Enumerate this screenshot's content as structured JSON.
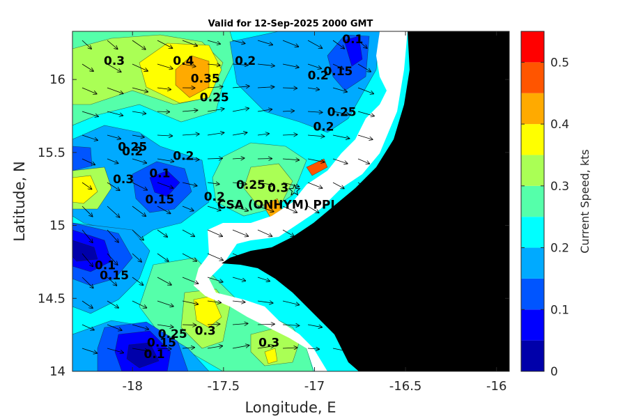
{
  "chart_data": {
    "type": "heatmap",
    "title": "Valid for 12-Sep-2025 2000 GMT",
    "xlabel": "Longitude, E",
    "ylabel": "Latitude, N",
    "xlim": [
      -18.33,
      -15.93
    ],
    "ylim": [
      14.0,
      16.33
    ],
    "x_ticks": [
      -18,
      -17.5,
      -17,
      -16.5,
      -16
    ],
    "x_tick_labels": [
      "-18",
      "-17.5",
      "-17",
      "-16.5",
      "-16"
    ],
    "y_ticks": [
      14,
      14.5,
      15,
      15.5,
      16
    ],
    "y_tick_labels": [
      "14",
      "14.5",
      "15",
      "15.5",
      "16"
    ],
    "colorbar": {
      "label": "Current Speed, kts",
      "range": [
        0,
        0.55
      ],
      "levels": [
        0,
        0.05,
        0.1,
        0.15,
        0.2,
        0.25,
        0.3,
        0.35,
        0.4,
        0.45,
        0.5,
        0.55
      ],
      "colors": [
        "#0000aa",
        "#0000ff",
        "#0055ff",
        "#00aaff",
        "#00ffff",
        "#55ffaa",
        "#aaff55",
        "#ffff00",
        "#ffaa00",
        "#ff5500",
        "#ff0000"
      ],
      "tick_values": [
        0,
        0.1,
        0.2,
        0.3,
        0.4,
        0.5
      ],
      "tick_labels": [
        "0",
        "0.1",
        "0.2",
        "0.3",
        "0.4",
        "0.5"
      ]
    },
    "contour_labels": [
      {
        "text": "0.3",
        "lon": -18.1,
        "lat": 16.1
      },
      {
        "text": "0.4",
        "lon": -17.72,
        "lat": 16.1
      },
      {
        "text": "0.35",
        "lon": -17.6,
        "lat": 15.98
      },
      {
        "text": "0.2",
        "lon": -17.38,
        "lat": 16.1
      },
      {
        "text": "0.25",
        "lon": -17.55,
        "lat": 15.85
      },
      {
        "text": "0.1",
        "lon": -16.79,
        "lat": 16.25
      },
      {
        "text": "0.15",
        "lon": -16.87,
        "lat": 16.03
      },
      {
        "text": "0.2",
        "lon": -16.98,
        "lat": 16.0
      },
      {
        "text": "0.25",
        "lon": -16.85,
        "lat": 15.75
      },
      {
        "text": "0.2",
        "lon": -16.95,
        "lat": 15.65
      },
      {
        "text": "0.2",
        "lon": -18.0,
        "lat": 15.48
      },
      {
        "text": "0.25",
        "lon": -18.0,
        "lat": 15.51
      },
      {
        "text": "0.2",
        "lon": -17.72,
        "lat": 15.45
      },
      {
        "text": "0.3",
        "lon": -18.05,
        "lat": 15.29
      },
      {
        "text": "0.1",
        "lon": -17.85,
        "lat": 15.33
      },
      {
        "text": "0.15",
        "lon": -17.85,
        "lat": 15.15
      },
      {
        "text": "0.2",
        "lon": -17.55,
        "lat": 15.17
      },
      {
        "text": "0.25",
        "lon": -17.35,
        "lat": 15.25
      },
      {
        "text": "0.3",
        "lon": -17.2,
        "lat": 15.23
      },
      {
        "text": "0.1",
        "lon": -18.15,
        "lat": 14.7
      },
      {
        "text": "0.15",
        "lon": -18.1,
        "lat": 14.63
      },
      {
        "text": "0.25",
        "lon": -17.78,
        "lat": 14.23
      },
      {
        "text": "0.3",
        "lon": -17.6,
        "lat": 14.25
      },
      {
        "text": "0.15",
        "lon": -17.84,
        "lat": 14.17
      },
      {
        "text": "0.1",
        "lon": -17.88,
        "lat": 14.09
      },
      {
        "text": "0.3",
        "lon": -17.25,
        "lat": 14.17
      }
    ],
    "site": {
      "label": "CSA (ONHYM) PPL E",
      "lon": -17.11,
      "lat": 15.24
    },
    "grid": false,
    "legend": "none"
  }
}
